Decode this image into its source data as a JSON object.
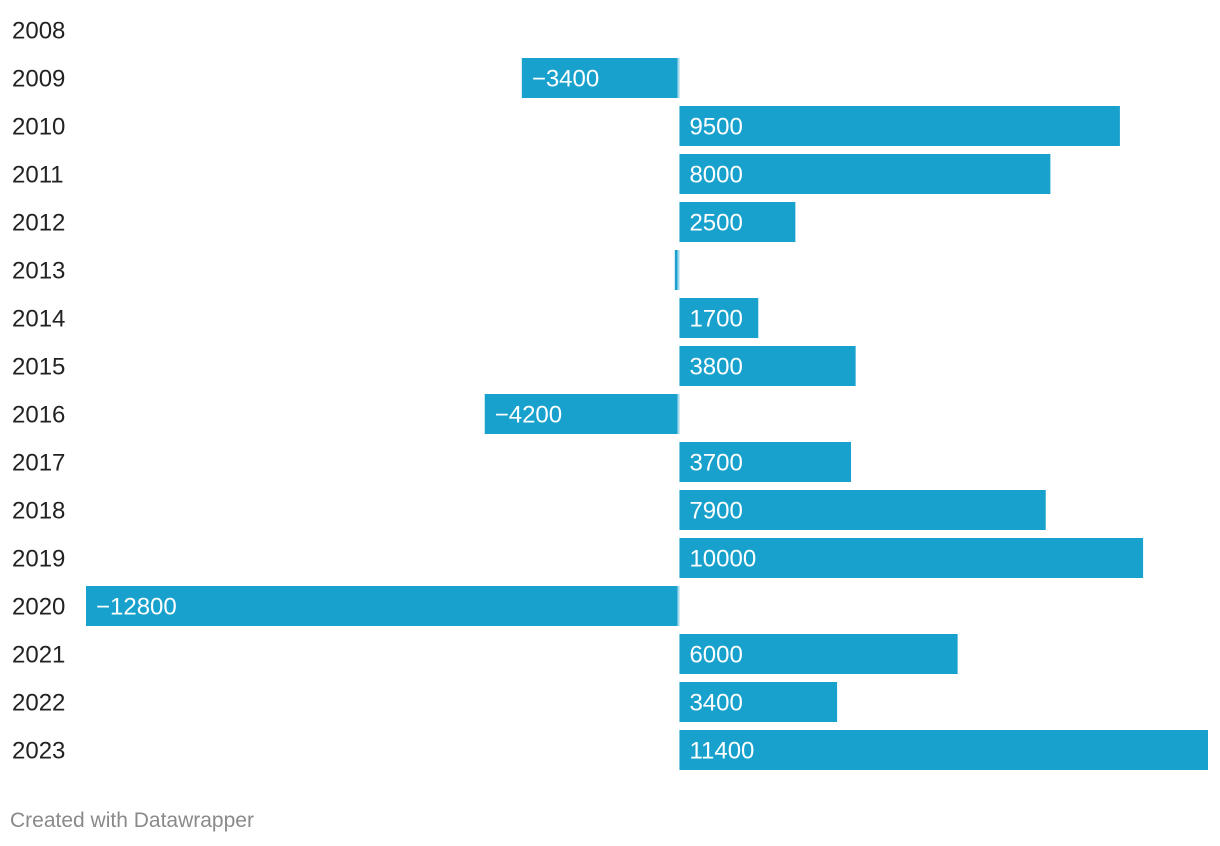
{
  "chart_data": {
    "type": "bar",
    "orientation": "horizontal",
    "categories": [
      "2008",
      "2009",
      "2010",
      "2011",
      "2012",
      "2013",
      "2014",
      "2015",
      "2016",
      "2017",
      "2018",
      "2019",
      "2020",
      "2021",
      "2022",
      "2023"
    ],
    "values": [
      0,
      -3400,
      9500,
      8000,
      2500,
      -100,
      1700,
      3800,
      -4200,
      3700,
      7900,
      10000,
      -12800,
      6000,
      3400,
      11400
    ],
    "value_labels": [
      "",
      "−3400",
      "9500",
      "8000",
      "2500",
      "",
      "1700",
      "3800",
      "−4200",
      "3700",
      "7900",
      "10000",
      "−12800",
      "6000",
      "3400",
      "11400"
    ],
    "xlim": [
      -12800,
      11400
    ],
    "bar_color": "#18a1cd",
    "grid": false,
    "title": "",
    "xlabel": "",
    "ylabel": ""
  },
  "footer": {
    "credit": "Created with Datawrapper"
  }
}
